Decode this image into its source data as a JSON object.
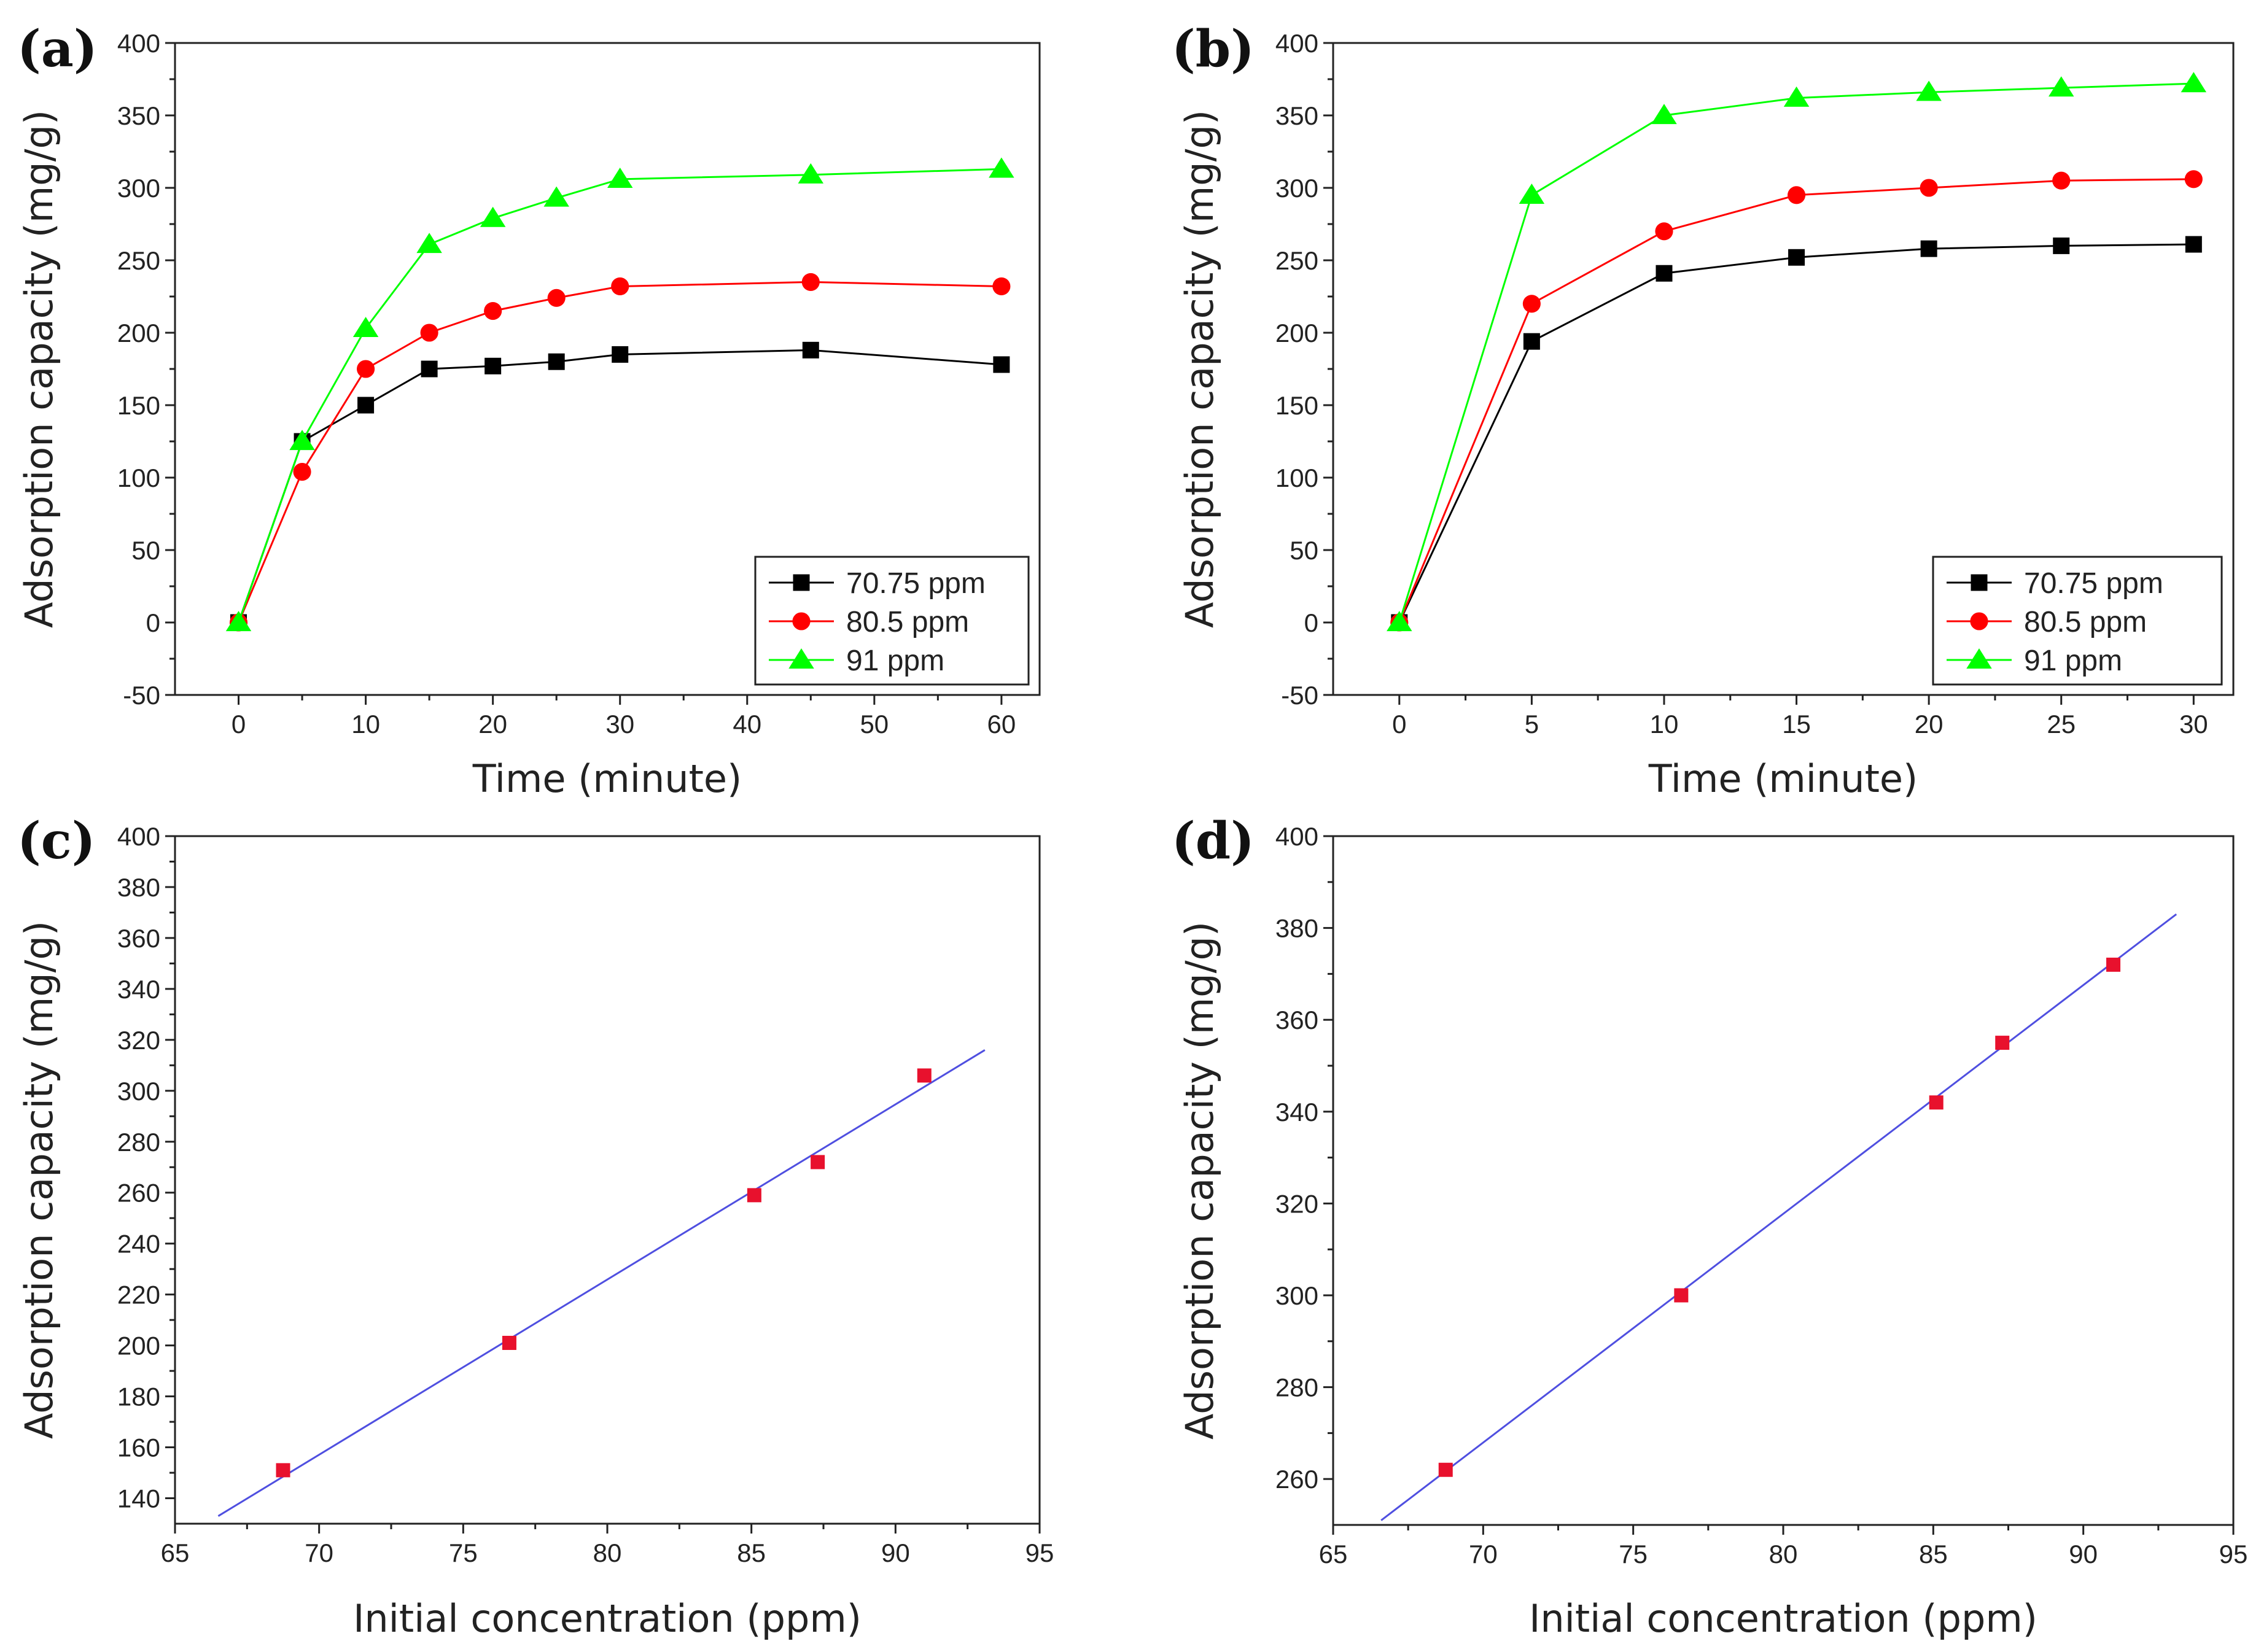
{
  "chart_data": [
    {
      "panel": "(a)",
      "type": "line",
      "xlabel": "Time (minute)",
      "ylabel": "Adsorption capacity (mg/g)",
      "xlim": [
        -5,
        63
      ],
      "ylim": [
        -50,
        400
      ],
      "xticks": [
        0,
        10,
        20,
        30,
        40,
        50,
        60
      ],
      "yticks": [
        -50,
        0,
        50,
        100,
        150,
        200,
        250,
        300,
        350,
        400
      ],
      "legend_position": "bottom-right",
      "series": [
        {
          "name": "70.75 ppm",
          "color": "#000000",
          "marker": "square",
          "x": [
            0,
            5,
            10,
            15,
            20,
            25,
            30,
            45,
            60
          ],
          "y": [
            0,
            125,
            150,
            175,
            177,
            180,
            185,
            188,
            178
          ]
        },
        {
          "name": "80.5 ppm",
          "color": "#ff0000",
          "marker": "circle",
          "x": [
            0,
            5,
            10,
            15,
            20,
            25,
            30,
            45,
            60
          ],
          "y": [
            0,
            104,
            175,
            200,
            215,
            224,
            232,
            235,
            232
          ]
        },
        {
          "name": "91 ppm",
          "color": "#00ff00",
          "marker": "triangle",
          "x": [
            0,
            5,
            10,
            15,
            20,
            25,
            30,
            45,
            60
          ],
          "y": [
            0,
            125,
            203,
            261,
            279,
            293,
            306,
            309,
            313
          ]
        }
      ]
    },
    {
      "panel": "(b)",
      "type": "line",
      "xlabel": "Time (minute)",
      "ylabel": "Adsorption capacity (mg/g)",
      "xlim": [
        -2.5,
        31.5
      ],
      "ylim": [
        -50,
        400
      ],
      "xticks": [
        0,
        5,
        10,
        15,
        20,
        25,
        30
      ],
      "yticks": [
        -50,
        0,
        50,
        100,
        150,
        200,
        250,
        300,
        350,
        400
      ],
      "legend_position": "bottom-right",
      "series": [
        {
          "name": "70.75 ppm",
          "color": "#000000",
          "marker": "square",
          "x": [
            0,
            5,
            10,
            15,
            20,
            25,
            30
          ],
          "y": [
            0,
            194,
            241,
            252,
            258,
            260,
            261
          ]
        },
        {
          "name": "80.5 ppm",
          "color": "#ff0000",
          "marker": "circle",
          "x": [
            0,
            5,
            10,
            15,
            20,
            25,
            30
          ],
          "y": [
            0,
            220,
            270,
            295,
            300,
            305,
            306
          ]
        },
        {
          "name": "91 ppm",
          "color": "#00ff00",
          "marker": "triangle",
          "x": [
            0,
            5,
            10,
            15,
            20,
            25,
            30
          ],
          "y": [
            0,
            295,
            350,
            362,
            366,
            369,
            372
          ]
        }
      ]
    },
    {
      "panel": "(c)",
      "type": "scatter",
      "xlabel": "Initial concentration (ppm)",
      "ylabel": "Adsorption capacity (mg/g)",
      "xlim": [
        65,
        95
      ],
      "ylim": [
        130,
        400
      ],
      "xticks": [
        65,
        70,
        75,
        80,
        85,
        90,
        95
      ],
      "yticks": [
        140,
        160,
        180,
        200,
        220,
        240,
        260,
        280,
        300,
        320,
        340,
        360,
        380,
        400
      ],
      "points": {
        "color": "#e8112d",
        "marker": "square",
        "x": [
          68.75,
          76.6,
          85.1,
          87.3,
          91.0
        ],
        "y": [
          151,
          201,
          259,
          272,
          306
        ]
      },
      "fit_line": {
        "color": "#4f4fe0",
        "x": [
          66.5,
          93.1
        ],
        "y": [
          133,
          316
        ]
      }
    },
    {
      "panel": "(d)",
      "type": "scatter",
      "xlabel": "Initial concentration (ppm)",
      "ylabel": "Adsorption capacity (mg/g)",
      "xlim": [
        65,
        95
      ],
      "ylim": [
        250,
        400
      ],
      "xticks": [
        65,
        70,
        75,
        80,
        85,
        90,
        95
      ],
      "yticks": [
        260,
        280,
        300,
        320,
        340,
        360,
        380,
        400
      ],
      "points": {
        "color": "#e8112d",
        "marker": "square",
        "x": [
          68.75,
          76.6,
          85.1,
          87.3,
          91.0
        ],
        "y": [
          262,
          300,
          342,
          355,
          372
        ]
      },
      "fit_line": {
        "color": "#4f4fe0",
        "x": [
          66.6,
          93.1
        ],
        "y": [
          251,
          383
        ]
      }
    }
  ]
}
